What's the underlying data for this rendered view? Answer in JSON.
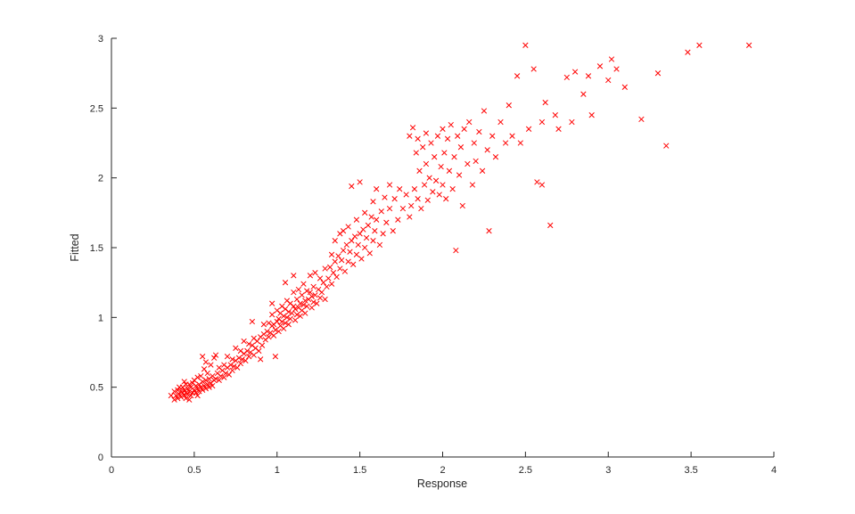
{
  "chart_data": {
    "type": "scatter",
    "title": "",
    "xlabel": "Response",
    "ylabel": "Fitted",
    "xlim": [
      0,
      4
    ],
    "ylim": [
      0,
      3
    ],
    "xticks": [
      0,
      0.5,
      1,
      1.5,
      2,
      2.5,
      3,
      3.5,
      4
    ],
    "yticks": [
      0,
      0.5,
      1,
      1.5,
      2,
      2.5,
      3
    ],
    "grid": false,
    "legend": null,
    "marker": "x",
    "marker_color": "#ff0000",
    "marker_size": 5.6,
    "axis_color": "#262626",
    "points": [
      [
        0.36,
        0.44
      ],
      [
        0.38,
        0.41
      ],
      [
        0.38,
        0.47
      ],
      [
        0.39,
        0.44
      ],
      [
        0.4,
        0.42
      ],
      [
        0.4,
        0.48
      ],
      [
        0.41,
        0.45
      ],
      [
        0.41,
        0.5
      ],
      [
        0.42,
        0.43
      ],
      [
        0.42,
        0.47
      ],
      [
        0.43,
        0.46
      ],
      [
        0.43,
        0.5
      ],
      [
        0.44,
        0.44
      ],
      [
        0.44,
        0.48
      ],
      [
        0.44,
        0.54
      ],
      [
        0.45,
        0.42
      ],
      [
        0.45,
        0.46
      ],
      [
        0.45,
        0.52
      ],
      [
        0.46,
        0.45
      ],
      [
        0.46,
        0.49
      ],
      [
        0.47,
        0.41
      ],
      [
        0.47,
        0.47
      ],
      [
        0.47,
        0.52
      ],
      [
        0.48,
        0.44
      ],
      [
        0.48,
        0.5
      ],
      [
        0.49,
        0.46
      ],
      [
        0.49,
        0.53
      ],
      [
        0.5,
        0.48
      ],
      [
        0.5,
        0.55
      ],
      [
        0.51,
        0.46
      ],
      [
        0.51,
        0.51
      ],
      [
        0.52,
        0.44
      ],
      [
        0.52,
        0.49
      ],
      [
        0.52,
        0.57
      ],
      [
        0.53,
        0.47
      ],
      [
        0.53,
        0.52
      ],
      [
        0.54,
        0.5
      ],
      [
        0.54,
        0.58
      ],
      [
        0.55,
        0.48
      ],
      [
        0.55,
        0.54
      ],
      [
        0.55,
        0.72
      ],
      [
        0.56,
        0.51
      ],
      [
        0.56,
        0.63
      ],
      [
        0.57,
        0.49
      ],
      [
        0.57,
        0.55
      ],
      [
        0.57,
        0.68
      ],
      [
        0.58,
        0.52
      ],
      [
        0.58,
        0.6
      ],
      [
        0.59,
        0.5
      ],
      [
        0.59,
        0.56
      ],
      [
        0.6,
        0.53
      ],
      [
        0.6,
        0.66
      ],
      [
        0.61,
        0.51
      ],
      [
        0.61,
        0.58
      ],
      [
        0.62,
        0.55
      ],
      [
        0.62,
        0.71
      ],
      [
        0.63,
        0.56
      ],
      [
        0.63,
        0.73
      ],
      [
        0.64,
        0.6
      ],
      [
        0.65,
        0.55
      ],
      [
        0.65,
        0.64
      ],
      [
        0.66,
        0.58
      ],
      [
        0.67,
        0.62
      ],
      [
        0.68,
        0.57
      ],
      [
        0.68,
        0.66
      ],
      [
        0.69,
        0.6
      ],
      [
        0.7,
        0.64
      ],
      [
        0.7,
        0.72
      ],
      [
        0.71,
        0.59
      ],
      [
        0.72,
        0.66
      ],
      [
        0.73,
        0.62
      ],
      [
        0.73,
        0.7
      ],
      [
        0.74,
        0.65
      ],
      [
        0.75,
        0.69
      ],
      [
        0.75,
        0.78
      ],
      [
        0.76,
        0.64
      ],
      [
        0.77,
        0.71
      ],
      [
        0.78,
        0.67
      ],
      [
        0.78,
        0.76
      ],
      [
        0.79,
        0.7
      ],
      [
        0.8,
        0.74
      ],
      [
        0.8,
        0.83
      ],
      [
        0.81,
        0.69
      ],
      [
        0.82,
        0.76
      ],
      [
        0.83,
        0.72
      ],
      [
        0.83,
        0.81
      ],
      [
        0.84,
        0.75
      ],
      [
        0.85,
        0.8
      ],
      [
        0.85,
        0.97
      ],
      [
        0.86,
        0.73
      ],
      [
        0.86,
        0.85
      ],
      [
        0.87,
        0.78
      ],
      [
        0.88,
        0.83
      ],
      [
        0.89,
        0.76
      ],
      [
        0.9,
        0.7
      ],
      [
        0.9,
        0.86
      ],
      [
        0.91,
        0.8
      ],
      [
        0.92,
        0.88
      ],
      [
        0.92,
        0.95
      ],
      [
        0.93,
        0.84
      ],
      [
        0.94,
        0.9
      ],
      [
        0.95,
        0.86
      ],
      [
        0.95,
        0.96
      ],
      [
        0.96,
        0.89
      ],
      [
        0.97,
        0.94
      ],
      [
        0.97,
        1.02
      ],
      [
        0.97,
        1.1
      ],
      [
        0.98,
        0.87
      ],
      [
        0.98,
        0.95
      ],
      [
        0.99,
        0.72
      ],
      [
        0.99,
        0.91
      ],
      [
        1.0,
        0.97
      ],
      [
        1.0,
        1.05
      ],
      [
        1.01,
        0.9
      ],
      [
        1.01,
        0.99
      ],
      [
        1.02,
        0.94
      ],
      [
        1.02,
        1.03
      ],
      [
        1.03,
        0.97
      ],
      [
        1.03,
        1.08
      ],
      [
        1.04,
        0.92
      ],
      [
        1.04,
        1.01
      ],
      [
        1.05,
        0.96
      ],
      [
        1.05,
        1.06
      ],
      [
        1.05,
        1.25
      ],
      [
        1.06,
        1.0
      ],
      [
        1.06,
        1.12
      ],
      [
        1.07,
        0.95
      ],
      [
        1.07,
        1.04
      ],
      [
        1.08,
        0.99
      ],
      [
        1.08,
        1.1
      ],
      [
        1.09,
        1.03
      ],
      [
        1.1,
        1.08
      ],
      [
        1.1,
        1.18
      ],
      [
        1.1,
        1.3
      ],
      [
        1.11,
        0.98
      ],
      [
        1.11,
        1.06
      ],
      [
        1.12,
        1.02
      ],
      [
        1.12,
        1.13
      ],
      [
        1.13,
        1.07
      ],
      [
        1.13,
        1.2
      ],
      [
        1.14,
        1.01
      ],
      [
        1.14,
        1.1
      ],
      [
        1.15,
        1.05
      ],
      [
        1.15,
        1.16
      ],
      [
        1.16,
        1.09
      ],
      [
        1.16,
        1.24
      ],
      [
        1.17,
        1.03
      ],
      [
        1.17,
        1.12
      ],
      [
        1.18,
        1.08
      ],
      [
        1.18,
        1.19
      ],
      [
        1.19,
        1.13
      ],
      [
        1.2,
        1.18
      ],
      [
        1.2,
        1.3
      ],
      [
        1.21,
        1.07
      ],
      [
        1.21,
        1.15
      ],
      [
        1.22,
        1.11
      ],
      [
        1.22,
        1.22
      ],
      [
        1.23,
        1.16
      ],
      [
        1.23,
        1.32
      ],
      [
        1.24,
        1.1
      ],
      [
        1.25,
        1.2
      ],
      [
        1.26,
        1.14
      ],
      [
        1.26,
        1.28
      ],
      [
        1.27,
        1.18
      ],
      [
        1.28,
        1.25
      ],
      [
        1.29,
        1.13
      ],
      [
        1.29,
        1.35
      ],
      [
        1.3,
        1.22
      ],
      [
        1.31,
        1.28
      ],
      [
        1.32,
        1.36
      ],
      [
        1.33,
        1.24
      ],
      [
        1.33,
        1.45
      ],
      [
        1.34,
        1.32
      ],
      [
        1.35,
        1.4
      ],
      [
        1.35,
        1.55
      ],
      [
        1.36,
        1.29
      ],
      [
        1.37,
        1.44
      ],
      [
        1.38,
        1.35
      ],
      [
        1.38,
        1.6
      ],
      [
        1.39,
        1.41
      ],
      [
        1.4,
        1.48
      ],
      [
        1.4,
        1.62
      ],
      [
        1.41,
        1.33
      ],
      [
        1.42,
        1.52
      ],
      [
        1.43,
        1.4
      ],
      [
        1.43,
        1.65
      ],
      [
        1.44,
        1.47
      ],
      [
        1.45,
        1.55
      ],
      [
        1.45,
        1.94
      ],
      [
        1.46,
        1.38
      ],
      [
        1.47,
        1.58
      ],
      [
        1.48,
        1.45
      ],
      [
        1.48,
        1.7
      ],
      [
        1.49,
        1.52
      ],
      [
        1.5,
        1.6
      ],
      [
        1.5,
        1.97
      ],
      [
        1.51,
        1.42
      ],
      [
        1.52,
        1.63
      ],
      [
        1.53,
        1.5
      ],
      [
        1.53,
        1.75
      ],
      [
        1.54,
        1.57
      ],
      [
        1.55,
        1.66
      ],
      [
        1.56,
        1.46
      ],
      [
        1.57,
        1.72
      ],
      [
        1.58,
        1.55
      ],
      [
        1.58,
        1.83
      ],
      [
        1.59,
        1.62
      ],
      [
        1.6,
        1.7
      ],
      [
        1.6,
        1.92
      ],
      [
        1.62,
        1.52
      ],
      [
        1.63,
        1.76
      ],
      [
        1.64,
        1.6
      ],
      [
        1.65,
        1.86
      ],
      [
        1.66,
        1.68
      ],
      [
        1.68,
        1.78
      ],
      [
        1.68,
        1.95
      ],
      [
        1.7,
        1.62
      ],
      [
        1.71,
        1.85
      ],
      [
        1.73,
        1.7
      ],
      [
        1.74,
        1.92
      ],
      [
        1.76,
        1.78
      ],
      [
        1.78,
        1.88
      ],
      [
        1.8,
        1.72
      ],
      [
        1.8,
        2.3
      ],
      [
        1.81,
        1.8
      ],
      [
        1.82,
        2.36
      ],
      [
        1.83,
        1.92
      ],
      [
        1.84,
        2.18
      ],
      [
        1.85,
        1.85
      ],
      [
        1.85,
        2.28
      ],
      [
        1.86,
        2.05
      ],
      [
        1.87,
        1.78
      ],
      [
        1.88,
        2.22
      ],
      [
        1.89,
        1.95
      ],
      [
        1.9,
        2.1
      ],
      [
        1.9,
        2.32
      ],
      [
        1.91,
        1.84
      ],
      [
        1.92,
        2.0
      ],
      [
        1.93,
        2.25
      ],
      [
        1.94,
        1.9
      ],
      [
        1.95,
        2.15
      ],
      [
        1.96,
        1.98
      ],
      [
        1.97,
        2.3
      ],
      [
        1.98,
        1.88
      ],
      [
        1.99,
        2.08
      ],
      [
        2.0,
        1.95
      ],
      [
        2.0,
        2.35
      ],
      [
        2.01,
        2.18
      ],
      [
        2.02,
        1.85
      ],
      [
        2.03,
        2.28
      ],
      [
        2.04,
        2.05
      ],
      [
        2.05,
        2.38
      ],
      [
        2.06,
        1.92
      ],
      [
        2.07,
        2.15
      ],
      [
        2.08,
        1.48
      ],
      [
        2.09,
        2.3
      ],
      [
        2.1,
        2.02
      ],
      [
        2.11,
        2.22
      ],
      [
        2.12,
        1.8
      ],
      [
        2.13,
        2.35
      ],
      [
        2.15,
        2.1
      ],
      [
        2.16,
        2.4
      ],
      [
        2.18,
        1.95
      ],
      [
        2.19,
        2.25
      ],
      [
        2.2,
        2.12
      ],
      [
        2.22,
        2.33
      ],
      [
        2.24,
        2.05
      ],
      [
        2.25,
        2.48
      ],
      [
        2.27,
        2.2
      ],
      [
        2.28,
        1.62
      ],
      [
        2.3,
        2.3
      ],
      [
        2.32,
        2.15
      ],
      [
        2.35,
        2.4
      ],
      [
        2.38,
        2.25
      ],
      [
        2.4,
        2.52
      ],
      [
        2.42,
        2.3
      ],
      [
        2.45,
        2.73
      ],
      [
        2.47,
        2.25
      ],
      [
        2.5,
        2.95
      ],
      [
        2.52,
        2.35
      ],
      [
        2.55,
        2.78
      ],
      [
        2.57,
        1.97
      ],
      [
        2.6,
        1.95
      ],
      [
        2.6,
        2.4
      ],
      [
        2.62,
        2.54
      ],
      [
        2.65,
        1.66
      ],
      [
        2.68,
        2.45
      ],
      [
        2.7,
        2.35
      ],
      [
        2.75,
        2.72
      ],
      [
        2.78,
        2.4
      ],
      [
        2.8,
        2.76
      ],
      [
        2.85,
        2.6
      ],
      [
        2.88,
        2.73
      ],
      [
        2.9,
        2.45
      ],
      [
        2.95,
        2.8
      ],
      [
        3.0,
        2.7
      ],
      [
        3.02,
        2.85
      ],
      [
        3.05,
        2.78
      ],
      [
        3.1,
        2.65
      ],
      [
        3.2,
        2.42
      ],
      [
        3.3,
        2.75
      ],
      [
        3.35,
        2.23
      ],
      [
        3.48,
        2.9
      ],
      [
        3.55,
        2.95
      ],
      [
        3.85,
        2.95
      ]
    ]
  }
}
